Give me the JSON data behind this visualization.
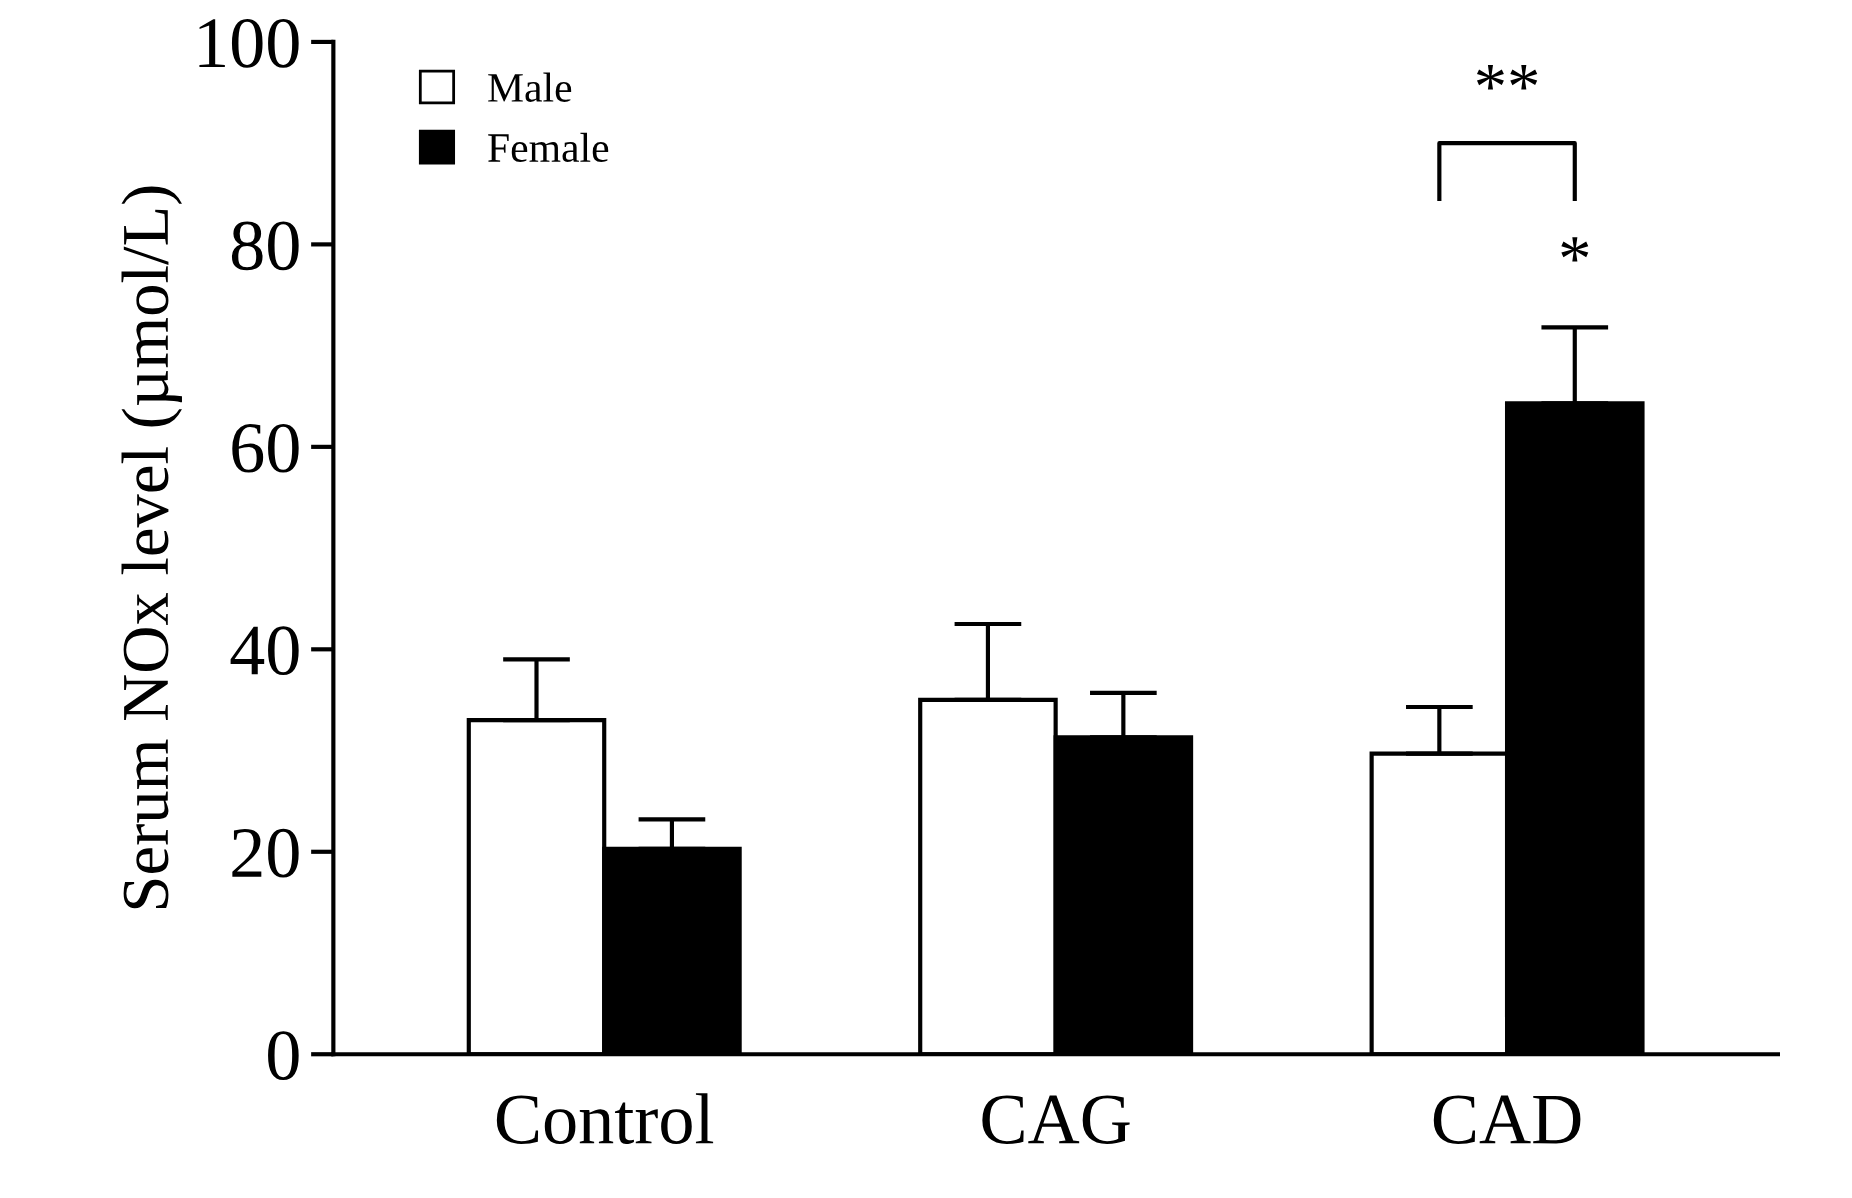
{
  "chart_data": {
    "type": "bar",
    "ylabel": "Serum NOx level (µmol/L)",
    "categories": [
      "Control",
      "CAG",
      "CAD"
    ],
    "series": [
      {
        "name": "Male",
        "color": "#ffffff",
        "values": [
          33,
          35,
          29.7
        ],
        "errors": [
          [
            33,
            39
          ],
          [
            35,
            42.5
          ],
          [
            29.7,
            34.3
          ]
        ]
      },
      {
        "name": "Female",
        "color": "#000000",
        "values": [
          20.3,
          31.3,
          64.3
        ],
        "errors": [
          [
            20.3,
            23.2
          ],
          [
            31.3,
            35.7
          ],
          [
            64.3,
            71.8
          ]
        ]
      }
    ],
    "ylim": [
      0,
      100
    ],
    "yticks": [
      0,
      20,
      40,
      60,
      80,
      100
    ],
    "grid": false,
    "legend": "top left",
    "annotations": [
      "**",
      "*"
    ]
  }
}
